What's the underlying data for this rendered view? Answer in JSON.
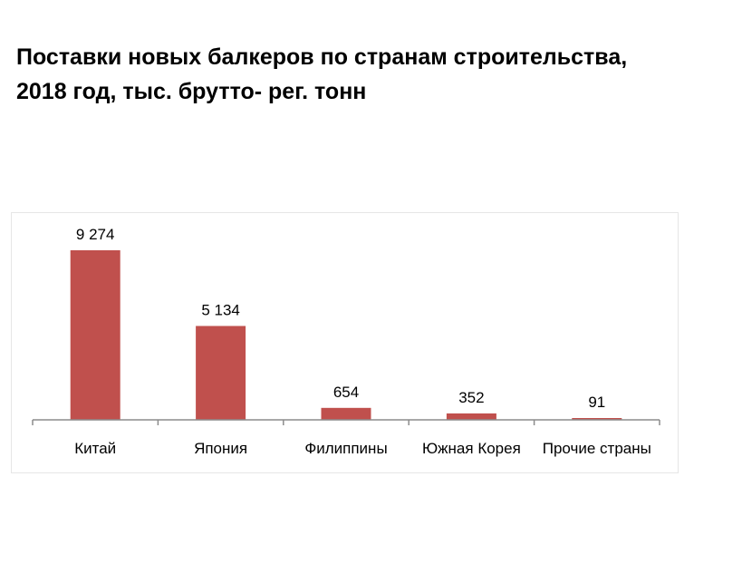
{
  "title_lines": [
    "Поставки новых балкеров по странам строительства,",
    "2018 год, тыс. брутто- рег. тонн"
  ],
  "chart_data": {
    "type": "bar",
    "title": "Поставки новых балкеров по странам строительства, 2018 год, тыс. брутто- рег. тонн",
    "categories": [
      "Китай",
      "Япония",
      "Филиппины",
      "Южная Корея",
      "Прочие страны"
    ],
    "values": [
      9274,
      5134,
      654,
      352,
      91
    ],
    "data_labels": [
      "9 274",
      "5 134",
      "654",
      "352",
      "91"
    ],
    "bar_color": "#c0504d",
    "ylim": [
      0,
      9274
    ],
    "grid": false,
    "legend": "none"
  }
}
